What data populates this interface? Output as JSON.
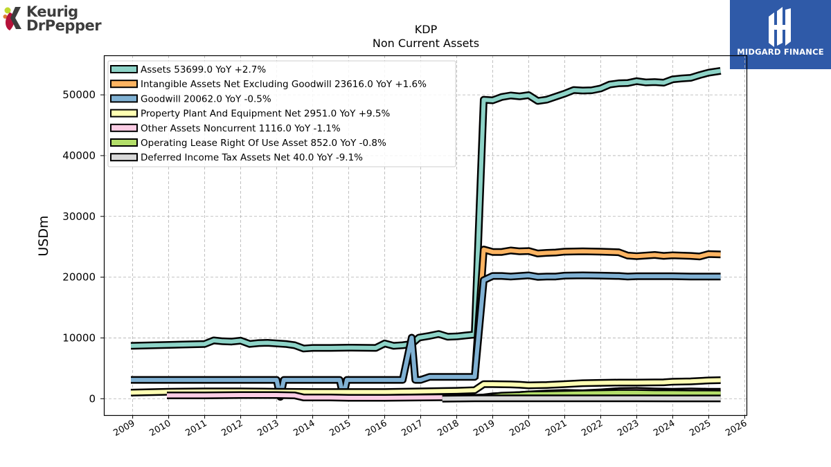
{
  "brand": {
    "logo_line1": "Keurig",
    "logo_line2": "DrPepper",
    "partner_name": "MIDGARD FINANCE"
  },
  "chart_data": {
    "type": "line",
    "title": "KDP",
    "subtitle": "Non Current  Assets",
    "ylabel": "USDm",
    "xlabel": "",
    "xlim": [
      2008.2,
      2026.05
    ],
    "ylim": [
      -2700,
      56500
    ],
    "yticks": [
      0,
      10000,
      20000,
      30000,
      40000,
      50000
    ],
    "xticks": [
      2009,
      2010,
      2011,
      2012,
      2013,
      2014,
      2015,
      2016,
      2017,
      2018,
      2019,
      2020,
      2021,
      2022,
      2023,
      2024,
      2025,
      2026
    ],
    "grid": true,
    "legend_position": "top-left",
    "series": [
      {
        "name": "Assets",
        "legend": "Assets  53699.0 YoY +2.7%",
        "color": "#8dd3c7",
        "points": [
          [
            2008.95,
            8700
          ],
          [
            2011.0,
            9000
          ],
          [
            2011.25,
            9600
          ],
          [
            2011.5,
            9450
          ],
          [
            2011.75,
            9400
          ],
          [
            2012.0,
            9550
          ],
          [
            2012.25,
            9000
          ],
          [
            2012.5,
            9150
          ],
          [
            2012.75,
            9200
          ],
          [
            2013.0,
            9100
          ],
          [
            2013.25,
            9000
          ],
          [
            2013.5,
            8800
          ],
          [
            2013.75,
            8250
          ],
          [
            2014.0,
            8350
          ],
          [
            2014.5,
            8350
          ],
          [
            2015.0,
            8400
          ],
          [
            2015.75,
            8350
          ],
          [
            2016.0,
            9100
          ],
          [
            2016.25,
            8700
          ],
          [
            2016.5,
            8800
          ],
          [
            2016.75,
            9000
          ],
          [
            2016.95,
            10050
          ],
          [
            2017.25,
            10350
          ],
          [
            2017.5,
            10650
          ],
          [
            2017.75,
            10200
          ],
          [
            2018.0,
            10250
          ],
          [
            2018.25,
            10400
          ],
          [
            2018.5,
            10550
          ],
          [
            2018.75,
            49200
          ],
          [
            2019.0,
            49100
          ],
          [
            2019.25,
            49650
          ],
          [
            2019.5,
            49900
          ],
          [
            2019.75,
            49750
          ],
          [
            2020.0,
            49950
          ],
          [
            2020.25,
            49000
          ],
          [
            2020.5,
            49200
          ],
          [
            2020.75,
            49700
          ],
          [
            2021.0,
            50200
          ],
          [
            2021.25,
            50800
          ],
          [
            2021.5,
            50700
          ],
          [
            2021.75,
            50750
          ],
          [
            2022.0,
            51050
          ],
          [
            2022.25,
            51700
          ],
          [
            2022.5,
            51900
          ],
          [
            2022.75,
            51950
          ],
          [
            2023.0,
            52250
          ],
          [
            2023.25,
            52050
          ],
          [
            2023.5,
            52100
          ],
          [
            2023.75,
            52000
          ],
          [
            2024.0,
            52550
          ],
          [
            2024.25,
            52700
          ],
          [
            2024.5,
            52800
          ],
          [
            2024.75,
            53250
          ],
          [
            2025.0,
            53650
          ],
          [
            2025.33,
            53950
          ]
        ]
      },
      {
        "name": "Intangible Assets Net Excluding Goodwill",
        "legend": "Intangible Assets Net Excluding Goodwill  23616.0 YoY +1.6%",
        "color": "#fdb462",
        "points": [
          [
            2018.5,
            3300
          ],
          [
            2018.75,
            24550
          ],
          [
            2019.0,
            24150
          ],
          [
            2019.25,
            24150
          ],
          [
            2019.5,
            24400
          ],
          [
            2019.75,
            24250
          ],
          [
            2020.0,
            24300
          ],
          [
            2020.25,
            23900
          ],
          [
            2020.5,
            24000
          ],
          [
            2020.75,
            24050
          ],
          [
            2021.0,
            24200
          ],
          [
            2021.5,
            24250
          ],
          [
            2022.0,
            24200
          ],
          [
            2022.5,
            24100
          ],
          [
            2022.75,
            23550
          ],
          [
            2023.0,
            23450
          ],
          [
            2023.5,
            23650
          ],
          [
            2023.75,
            23500
          ],
          [
            2024.0,
            23600
          ],
          [
            2024.5,
            23500
          ],
          [
            2024.75,
            23400
          ],
          [
            2025.0,
            23800
          ],
          [
            2025.33,
            23750
          ]
        ]
      },
      {
        "name": "Goodwill",
        "legend": "Goodwill  20062.0 YoY -0.5%",
        "color": "#80b1d3",
        "points": [
          [
            2008.95,
            3100
          ],
          [
            2013.0,
            3100
          ],
          [
            2013.1,
            300
          ],
          [
            2013.2,
            3100
          ],
          [
            2014.75,
            3100
          ],
          [
            2014.85,
            300
          ],
          [
            2014.95,
            3100
          ],
          [
            2016.5,
            3100
          ],
          [
            2016.75,
            10050
          ],
          [
            2016.85,
            3100
          ],
          [
            2017.0,
            3100
          ],
          [
            2017.25,
            3600
          ],
          [
            2018.5,
            3600
          ],
          [
            2018.75,
            19500
          ],
          [
            2019.0,
            20200
          ],
          [
            2019.25,
            20200
          ],
          [
            2019.5,
            20100
          ],
          [
            2019.75,
            20200
          ],
          [
            2020.0,
            20300
          ],
          [
            2020.25,
            20050
          ],
          [
            2020.5,
            20100
          ],
          [
            2020.75,
            20100
          ],
          [
            2021.0,
            20250
          ],
          [
            2021.5,
            20300
          ],
          [
            2022.0,
            20250
          ],
          [
            2022.5,
            20200
          ],
          [
            2022.75,
            20100
          ],
          [
            2023.0,
            20150
          ],
          [
            2023.5,
            20150
          ],
          [
            2024.0,
            20150
          ],
          [
            2024.5,
            20100
          ],
          [
            2025.0,
            20100
          ],
          [
            2025.33,
            20100
          ]
        ]
      },
      {
        "name": "Property Plant And Equipment Net",
        "legend": "Property Plant And Equipment Net  2951.0 YoY +9.5%",
        "color": "#ffffb3",
        "points": [
          [
            2008.95,
            1000
          ],
          [
            2010.0,
            1150
          ],
          [
            2011.0,
            1200
          ],
          [
            2012.0,
            1200
          ],
          [
            2013.0,
            1150
          ],
          [
            2014.0,
            1100
          ],
          [
            2015.0,
            1100
          ],
          [
            2016.0,
            1100
          ],
          [
            2017.0,
            1200
          ],
          [
            2018.0,
            1300
          ],
          [
            2018.5,
            1400
          ],
          [
            2018.75,
            2400
          ],
          [
            2019.0,
            2400
          ],
          [
            2019.5,
            2350
          ],
          [
            2019.75,
            2300
          ],
          [
            2020.0,
            2200
          ],
          [
            2020.5,
            2250
          ],
          [
            2021.0,
            2400
          ],
          [
            2021.5,
            2550
          ],
          [
            2022.0,
            2600
          ],
          [
            2022.5,
            2650
          ],
          [
            2023.0,
            2650
          ],
          [
            2023.75,
            2700
          ],
          [
            2024.0,
            2800
          ],
          [
            2024.5,
            2850
          ],
          [
            2025.0,
            3000
          ],
          [
            2025.33,
            3050
          ]
        ]
      },
      {
        "name": "Other Assets Noncurrent",
        "legend": "Other Assets Noncurrent  1116.0 YoY -1.1%",
        "color": "#fccde5",
        "points": [
          [
            2009.95,
            550
          ],
          [
            2011.0,
            550
          ],
          [
            2012.0,
            600
          ],
          [
            2013.0,
            600
          ],
          [
            2013.5,
            550
          ],
          [
            2013.75,
            200
          ],
          [
            2014.5,
            200
          ],
          [
            2015.0,
            150
          ],
          [
            2016.0,
            150
          ],
          [
            2017.0,
            200
          ],
          [
            2017.75,
            250
          ],
          [
            2018.5,
            150
          ],
          [
            2018.75,
            200
          ],
          [
            2019.0,
            400
          ],
          [
            2019.5,
            500
          ],
          [
            2020.0,
            700
          ],
          [
            2020.5,
            850
          ],
          [
            2021.0,
            950
          ],
          [
            2021.5,
            900
          ],
          [
            2022.0,
            1050
          ],
          [
            2022.5,
            1250
          ],
          [
            2023.0,
            1300
          ],
          [
            2023.5,
            1200
          ],
          [
            2024.0,
            1150
          ],
          [
            2024.5,
            1200
          ],
          [
            2025.0,
            1150
          ],
          [
            2025.33,
            1150
          ]
        ]
      },
      {
        "name": "Operating Lease Right Of Use Asset",
        "legend": "Operating Lease Right Of Use Asset  852.0 YoY -0.8%",
        "color": "#b3de69",
        "points": [
          [
            2018.95,
            300
          ],
          [
            2019.25,
            500
          ],
          [
            2019.75,
            600
          ],
          [
            2020.0,
            700
          ],
          [
            2020.5,
            750
          ],
          [
            2021.0,
            800
          ],
          [
            2021.5,
            850
          ],
          [
            2022.0,
            900
          ],
          [
            2022.5,
            950
          ],
          [
            2023.0,
            950
          ],
          [
            2023.5,
            900
          ],
          [
            2024.0,
            900
          ],
          [
            2024.5,
            880
          ],
          [
            2025.0,
            870
          ],
          [
            2025.33,
            860
          ]
        ]
      },
      {
        "name": "Deferred Income Tax Assets Net",
        "legend": "Deferred Income Tax Assets Net  40.0 YoY -9.1%",
        "color": "#d9d9d9",
        "points": [
          [
            2017.6,
            0
          ],
          [
            2018.5,
            50
          ],
          [
            2019.0,
            50
          ],
          [
            2020.0,
            50
          ],
          [
            2021.0,
            50
          ],
          [
            2022.0,
            50
          ],
          [
            2023.0,
            50
          ],
          [
            2024.0,
            40
          ],
          [
            2025.33,
            40
          ]
        ]
      }
    ]
  }
}
